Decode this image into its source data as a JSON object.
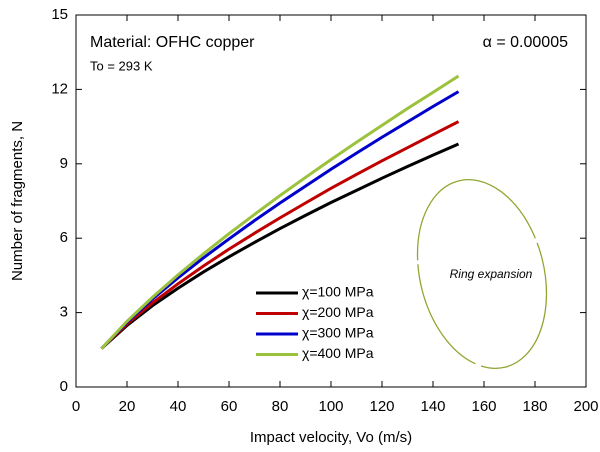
{
  "chart_data": {
    "type": "line",
    "xlabel": "Impact velocity, Vo (m/s)",
    "ylabel": "Number of fragments, N",
    "annotations": [
      "Material: OFHC copper",
      "To = 293 K",
      "α = 0.00005",
      "Ring expansion"
    ],
    "x": [
      10,
      20,
      30,
      40,
      50,
      60,
      70,
      80,
      90,
      100,
      110,
      120,
      130,
      140,
      150
    ],
    "series": [
      {
        "name": "χ=100 MPa",
        "color": "#000000",
        "values": [
          1.55,
          2.48,
          3.28,
          3.98,
          4.64,
          5.25,
          5.83,
          6.39,
          6.92,
          7.44,
          7.93,
          8.42,
          8.89,
          9.35,
          9.8
        ]
      },
      {
        "name": "χ=200 MPa",
        "color": "#c00000",
        "values": [
          1.55,
          2.54,
          3.39,
          4.16,
          4.88,
          5.56,
          6.2,
          6.82,
          7.42,
          8.01,
          8.57,
          9.12,
          9.65,
          10.18,
          10.7
        ]
      },
      {
        "name": "χ=300 MPa",
        "color": "#0000cc",
        "values": [
          1.55,
          2.61,
          3.55,
          4.4,
          5.21,
          5.97,
          6.71,
          7.42,
          8.1,
          8.78,
          9.43,
          10.07,
          10.69,
          11.31,
          11.91
        ]
      },
      {
        "name": "χ=400 MPa",
        "color": "#9bc23c",
        "values": [
          1.55,
          2.65,
          3.62,
          4.52,
          5.37,
          6.18,
          6.96,
          7.72,
          8.45,
          9.17,
          9.87,
          10.55,
          11.23,
          11.88,
          12.54
        ]
      }
    ],
    "xlim": [
      0,
      200
    ],
    "xticks": [
      0,
      20,
      40,
      60,
      80,
      100,
      120,
      140,
      160,
      180,
      200
    ],
    "ylim": [
      0,
      15
    ],
    "yticks": [
      0,
      3,
      6,
      9,
      12,
      15
    ],
    "grid": false
  }
}
